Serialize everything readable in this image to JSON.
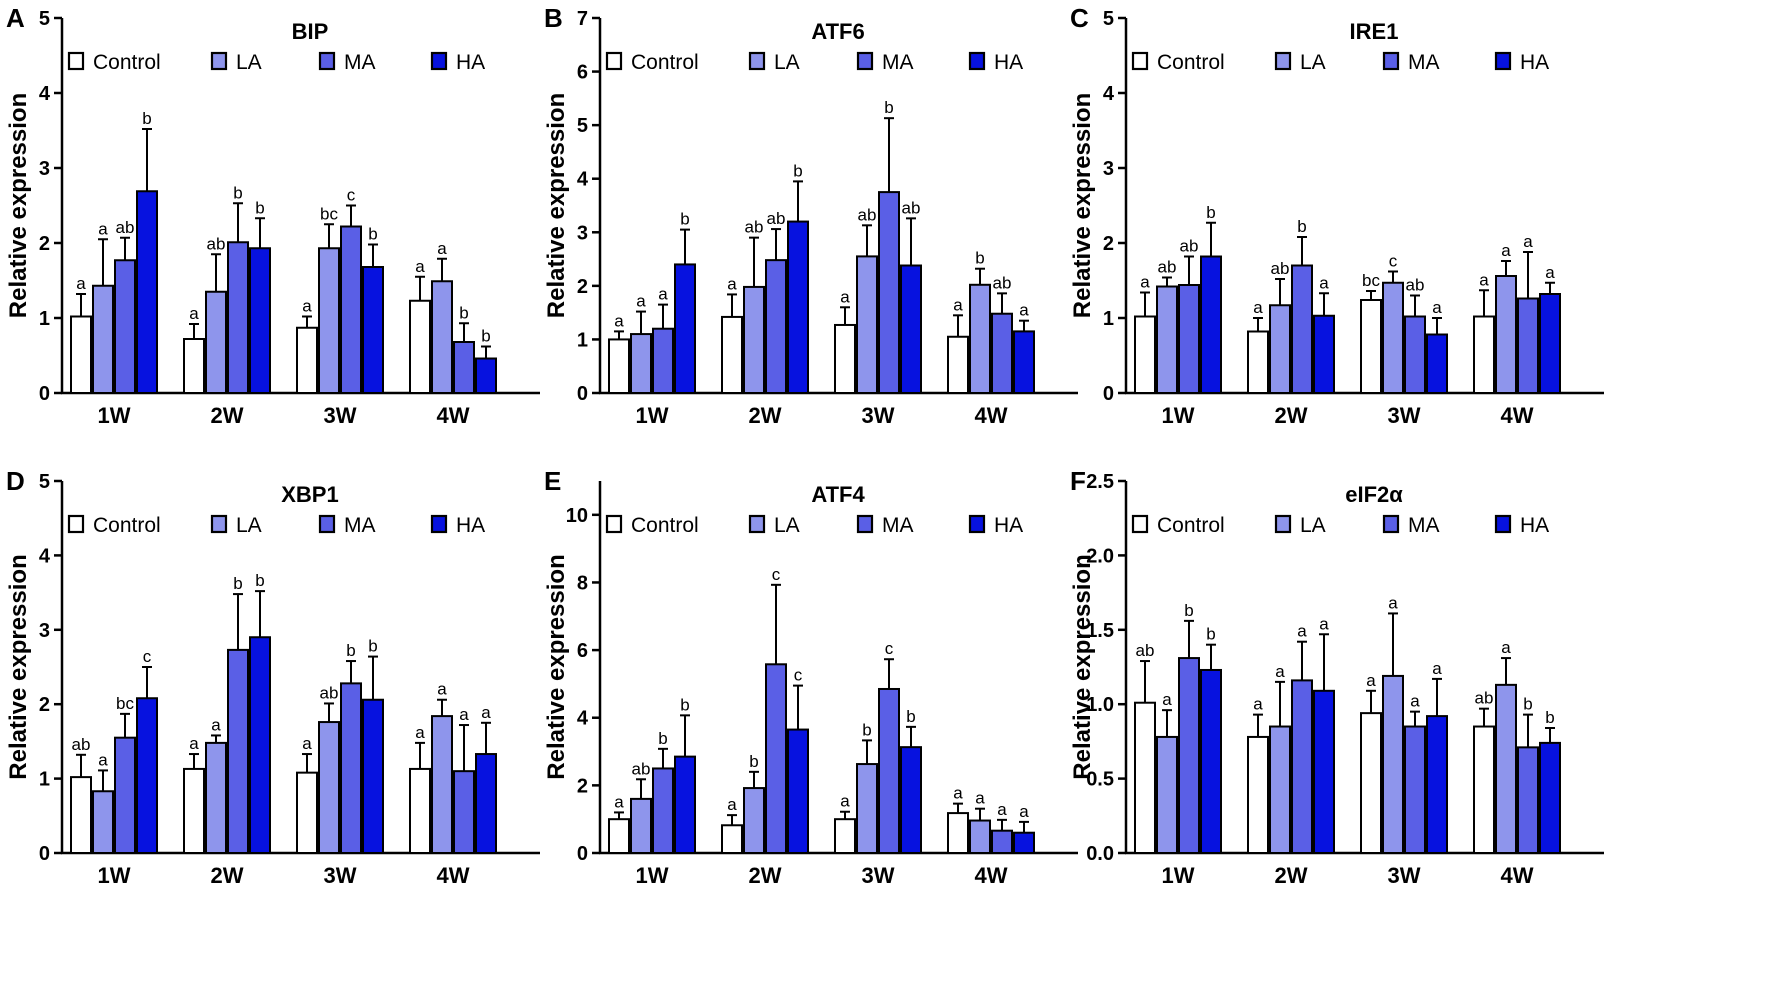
{
  "colors": {
    "Control": "#ffffff",
    "LA": "#8e95ec",
    "MA": "#5a5fe6",
    "HA": "#0712df"
  },
  "series_names": [
    "Control",
    "LA",
    "MA",
    "HA"
  ],
  "chart_data": [
    {
      "letter": "A",
      "type": "bar",
      "title": "BIP",
      "ylabel": "Relative expression",
      "categories": [
        "1W",
        "2W",
        "3W",
        "4W"
      ],
      "ylim": [
        0,
        5
      ],
      "yticks": [
        0,
        1,
        2,
        3,
        4,
        5
      ],
      "series": [
        {
          "name": "Control",
          "values": [
            1.02,
            0.72,
            0.87,
            1.23
          ],
          "errors": [
            0.3,
            0.2,
            0.15,
            0.32
          ],
          "labels": [
            "a",
            "a",
            "a",
            "a"
          ]
        },
        {
          "name": "LA",
          "values": [
            1.43,
            1.35,
            1.93,
            1.49
          ],
          "errors": [
            0.62,
            0.5,
            0.32,
            0.3
          ],
          "labels": [
            "a",
            "ab",
            "bc",
            "a"
          ]
        },
        {
          "name": "MA",
          "values": [
            1.77,
            2.01,
            2.22,
            0.68
          ],
          "errors": [
            0.3,
            0.52,
            0.28,
            0.25
          ],
          "labels": [
            "ab",
            "b",
            "c",
            "b"
          ]
        },
        {
          "name": "HA",
          "values": [
            2.69,
            1.93,
            1.68,
            0.46
          ],
          "errors": [
            0.83,
            0.4,
            0.3,
            0.16
          ],
          "labels": [
            "b",
            "b",
            "b",
            "b"
          ]
        }
      ]
    },
    {
      "letter": "B",
      "type": "bar",
      "title": "ATF6",
      "ylabel": "Relative expression",
      "categories": [
        "1W",
        "2W",
        "3W",
        "4W"
      ],
      "ylim": [
        0,
        7
      ],
      "yticks": [
        0,
        1,
        2,
        3,
        4,
        5,
        6,
        7
      ],
      "series": [
        {
          "name": "Control",
          "values": [
            1.0,
            1.42,
            1.27,
            1.05
          ],
          "errors": [
            0.15,
            0.42,
            0.33,
            0.4
          ],
          "labels": [
            "a",
            "a",
            "a",
            "a"
          ]
        },
        {
          "name": "LA",
          "values": [
            1.1,
            1.98,
            2.55,
            2.02
          ],
          "errors": [
            0.42,
            0.92,
            0.58,
            0.3
          ],
          "labels": [
            "a",
            "ab",
            "ab",
            "b"
          ]
        },
        {
          "name": "MA",
          "values": [
            1.2,
            2.48,
            3.75,
            1.48
          ],
          "errors": [
            0.45,
            0.58,
            1.38,
            0.38
          ],
          "labels": [
            "a",
            "ab",
            "b",
            "ab"
          ]
        },
        {
          "name": "HA",
          "values": [
            2.4,
            3.2,
            2.38,
            1.15
          ],
          "errors": [
            0.65,
            0.75,
            0.88,
            0.2
          ],
          "labels": [
            "b",
            "b",
            "ab",
            "a"
          ]
        }
      ]
    },
    {
      "letter": "C",
      "type": "bar",
      "title": "IRE1",
      "ylabel": "Relative expression",
      "categories": [
        "1W",
        "2W",
        "3W",
        "4W"
      ],
      "ylim": [
        0,
        5
      ],
      "yticks": [
        0,
        1,
        2,
        3,
        4,
        5
      ],
      "series": [
        {
          "name": "Control",
          "values": [
            1.02,
            0.82,
            1.24,
            1.02
          ],
          "errors": [
            0.32,
            0.18,
            0.12,
            0.35
          ],
          "labels": [
            "a",
            "a",
            "bc",
            "a"
          ]
        },
        {
          "name": "LA",
          "values": [
            1.42,
            1.17,
            1.47,
            1.56
          ],
          "errors": [
            0.12,
            0.35,
            0.15,
            0.2
          ],
          "labels": [
            "ab",
            "ab",
            "c",
            "a"
          ]
        },
        {
          "name": "MA",
          "values": [
            1.44,
            1.7,
            1.02,
            1.26
          ],
          "errors": [
            0.38,
            0.38,
            0.28,
            0.62
          ],
          "labels": [
            "ab",
            "b",
            "ab",
            "a"
          ]
        },
        {
          "name": "HA",
          "values": [
            1.82,
            1.03,
            0.78,
            1.32
          ],
          "errors": [
            0.45,
            0.3,
            0.22,
            0.15
          ],
          "labels": [
            "b",
            "a",
            "a",
            "a"
          ]
        }
      ]
    },
    {
      "letter": "D",
      "type": "bar",
      "title": "XBP1",
      "ylabel": "Relative expression",
      "categories": [
        "1W",
        "2W",
        "3W",
        "4W"
      ],
      "ylim": [
        0,
        5
      ],
      "yticks": [
        0,
        1,
        2,
        3,
        4,
        5
      ],
      "series": [
        {
          "name": "Control",
          "values": [
            1.02,
            1.13,
            1.08,
            1.13
          ],
          "errors": [
            0.3,
            0.2,
            0.25,
            0.35
          ],
          "labels": [
            "ab",
            "a",
            "a",
            "a"
          ]
        },
        {
          "name": "LA",
          "values": [
            0.83,
            1.48,
            1.76,
            1.84
          ],
          "errors": [
            0.28,
            0.1,
            0.25,
            0.22
          ],
          "labels": [
            "a",
            "a",
            "ab",
            "a"
          ]
        },
        {
          "name": "MA",
          "values": [
            1.55,
            2.73,
            2.28,
            1.1
          ],
          "errors": [
            0.32,
            0.75,
            0.3,
            0.62
          ],
          "labels": [
            "bc",
            "b",
            "b",
            "a"
          ]
        },
        {
          "name": "HA",
          "values": [
            2.08,
            2.9,
            2.06,
            1.33
          ],
          "errors": [
            0.42,
            0.62,
            0.58,
            0.42
          ],
          "labels": [
            "c",
            "b",
            "b",
            "a"
          ]
        }
      ]
    },
    {
      "letter": "E",
      "type": "bar",
      "title": "ATF4",
      "ylabel": "Relative expression",
      "categories": [
        "1W",
        "2W",
        "3W",
        "4W"
      ],
      "ylim": [
        0,
        11
      ],
      "yticks": [
        0,
        2,
        4,
        6,
        8,
        10
      ],
      "series": [
        {
          "name": "Control",
          "values": [
            1.0,
            0.82,
            1.0,
            1.18
          ],
          "errors": [
            0.2,
            0.3,
            0.22,
            0.28
          ],
          "labels": [
            "a",
            "a",
            "a",
            "a"
          ]
        },
        {
          "name": "LA",
          "values": [
            1.6,
            1.92,
            2.63,
            0.96
          ],
          "errors": [
            0.58,
            0.48,
            0.7,
            0.35
          ],
          "labels": [
            "ab",
            "b",
            "b",
            "a"
          ]
        },
        {
          "name": "MA",
          "values": [
            2.5,
            5.58,
            4.85,
            0.66
          ],
          "errors": [
            0.58,
            2.35,
            0.88,
            0.32
          ],
          "labels": [
            "b",
            "c",
            "c",
            "a"
          ]
        },
        {
          "name": "HA",
          "values": [
            2.85,
            3.65,
            3.13,
            0.6
          ],
          "errors": [
            1.22,
            1.3,
            0.6,
            0.32
          ],
          "labels": [
            "b",
            "c",
            "b",
            "a"
          ]
        }
      ]
    },
    {
      "letter": "F",
      "type": "bar",
      "title": "eIF2α",
      "ylabel": "Relative expression",
      "categories": [
        "1W",
        "2W",
        "3W",
        "4W"
      ],
      "ylim": [
        0,
        2.5
      ],
      "yticks": [
        0.0,
        0.5,
        1.0,
        1.5,
        2.0,
        2.5
      ],
      "ytick_labels": [
        "0.0",
        "0.5",
        "1.0",
        "1.5",
        "2.0",
        "2.5"
      ],
      "series": [
        {
          "name": "Control",
          "values": [
            1.01,
            0.78,
            0.94,
            0.85
          ],
          "errors": [
            0.28,
            0.15,
            0.15,
            0.12
          ],
          "labels": [
            "ab",
            "a",
            "a",
            "ab"
          ]
        },
        {
          "name": "LA",
          "values": [
            0.78,
            0.85,
            1.19,
            1.13
          ],
          "errors": [
            0.18,
            0.3,
            0.42,
            0.18
          ],
          "labels": [
            "a",
            "a",
            "a",
            "a"
          ]
        },
        {
          "name": "MA",
          "values": [
            1.31,
            1.16,
            0.85,
            0.71
          ],
          "errors": [
            0.25,
            0.26,
            0.1,
            0.22
          ],
          "labels": [
            "b",
            "a",
            "a",
            "b"
          ]
        },
        {
          "name": "HA",
          "values": [
            1.23,
            1.09,
            0.92,
            0.74
          ],
          "errors": [
            0.17,
            0.38,
            0.25,
            0.1
          ],
          "labels": [
            "b",
            "a",
            "a",
            "b"
          ]
        }
      ]
    }
  ]
}
